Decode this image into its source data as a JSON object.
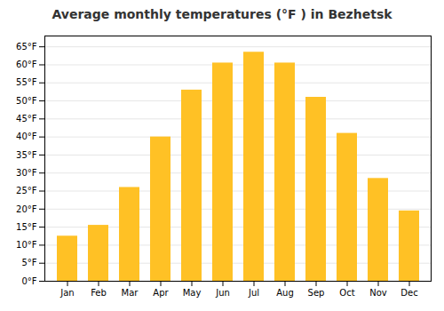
{
  "chart_data": {
    "type": "bar",
    "title": "Average monthly temperatures (°F ) in Bezhetsk",
    "categories": [
      "Jan",
      "Feb",
      "Mar",
      "Apr",
      "May",
      "Jun",
      "Jul",
      "Aug",
      "Sep",
      "Oct",
      "Nov",
      "Dec"
    ],
    "values": [
      12.5,
      15.5,
      26,
      40,
      53,
      60.5,
      63.5,
      60.5,
      51,
      41,
      28.5,
      19.5
    ],
    "color": "#FFC125",
    "ylim": [
      0,
      68
    ],
    "yticks": [
      {
        "value": 0,
        "label": "0°F"
      },
      {
        "value": 5,
        "label": "5°F"
      },
      {
        "value": 10,
        "label": "10°F"
      },
      {
        "value": 15,
        "label": "15°F"
      },
      {
        "value": 20,
        "label": "20°F"
      },
      {
        "value": 25,
        "label": "25°F"
      },
      {
        "value": 30,
        "label": "30°F"
      },
      {
        "value": 35,
        "label": "35°F"
      },
      {
        "value": 40,
        "label": "40°F"
      },
      {
        "value": 45,
        "label": "45°F"
      },
      {
        "value": 50,
        "label": "50°F"
      },
      {
        "value": 55,
        "label": "55°F"
      },
      {
        "value": 60,
        "label": "60°F"
      },
      {
        "value": 65,
        "label": "65°F"
      }
    ],
    "grid": true
  }
}
